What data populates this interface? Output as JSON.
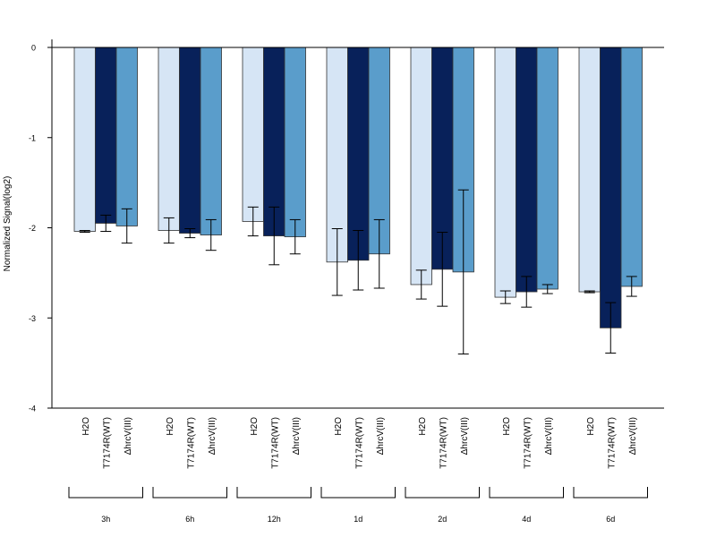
{
  "chart_data": {
    "type": "bar",
    "ylabel": "Normalized Signal(log2)",
    "ylim": [
      -4,
      0.1
    ],
    "yticks": [
      0,
      -1,
      -2,
      -3,
      -4
    ],
    "ytick_labels": [
      "0",
      "-1",
      "-2",
      "-3",
      "-4"
    ],
    "grid": false,
    "legend": "none",
    "groups": [
      "3h",
      "6h",
      "12h",
      "1d",
      "2d",
      "4d",
      "6d"
    ],
    "series": [
      {
        "name": "H2O",
        "color": "#d6e5f5",
        "values": [
          -2.04,
          -2.03,
          -1.93,
          -2.38,
          -2.63,
          -2.77,
          -2.71
        ],
        "error": [
          0.01,
          0.14,
          0.16,
          0.37,
          0.16,
          0.07,
          0.01
        ]
      },
      {
        "name": "T7174R(WT)",
        "color": "#08215a",
        "values": [
          -1.95,
          -2.06,
          -2.09,
          -2.36,
          -2.46,
          -2.71,
          -3.11
        ],
        "error": [
          0.09,
          0.05,
          0.32,
          0.33,
          0.41,
          0.17,
          0.28
        ]
      },
      {
        "name": "ΔhrcV(III)",
        "color": "#5a9dcb",
        "values": [
          -1.98,
          -2.08,
          -2.1,
          -2.29,
          -2.49,
          -2.68,
          -2.65
        ],
        "error": [
          0.19,
          0.17,
          0.19,
          0.38,
          0.91,
          0.05,
          0.11
        ]
      }
    ]
  }
}
